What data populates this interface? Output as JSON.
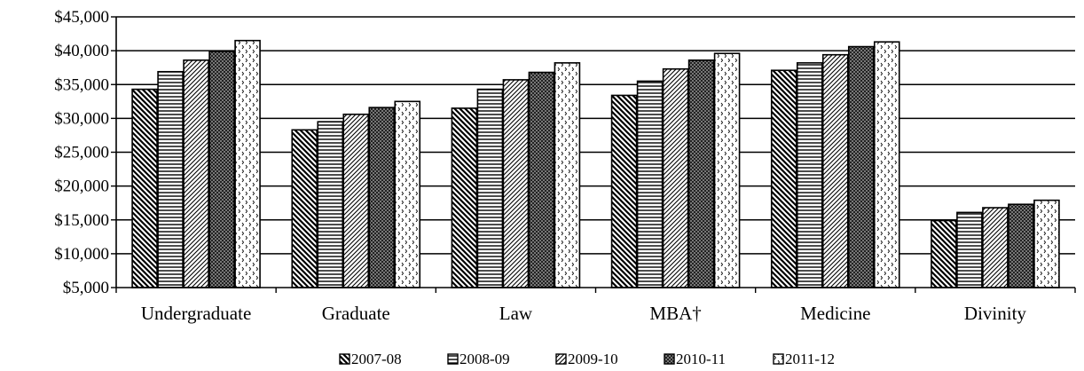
{
  "chart_data": {
    "type": "bar",
    "categories": [
      "Undergraduate",
      "Graduate",
      "Law",
      "MBA†",
      "Medicine",
      "Divinity"
    ],
    "series": [
      {
        "name": "2007-08",
        "values": [
          34300,
          28300,
          31500,
          33400,
          37100,
          14900
        ]
      },
      {
        "name": "2008-09",
        "values": [
          36900,
          29500,
          34300,
          35500,
          38200,
          16100
        ]
      },
      {
        "name": "2009-10",
        "values": [
          38600,
          30600,
          35700,
          37300,
          39400,
          16800
        ]
      },
      {
        "name": "2010-11",
        "values": [
          39900,
          31600,
          36800,
          38600,
          40600,
          17300
        ]
      },
      {
        "name": "2011-12",
        "values": [
          41500,
          32500,
          38200,
          39600,
          41300,
          17900
        ]
      }
    ],
    "ylim": [
      5000,
      45000
    ],
    "y_ticks": [
      "$5,000",
      "$10,000",
      "$15,000",
      "$20,000",
      "$25,000",
      "$30,000",
      "$35,000",
      "$40,000",
      "$45,000"
    ],
    "grid": true,
    "legend_position": "bottom",
    "title": "",
    "xlabel": "",
    "ylabel": ""
  }
}
